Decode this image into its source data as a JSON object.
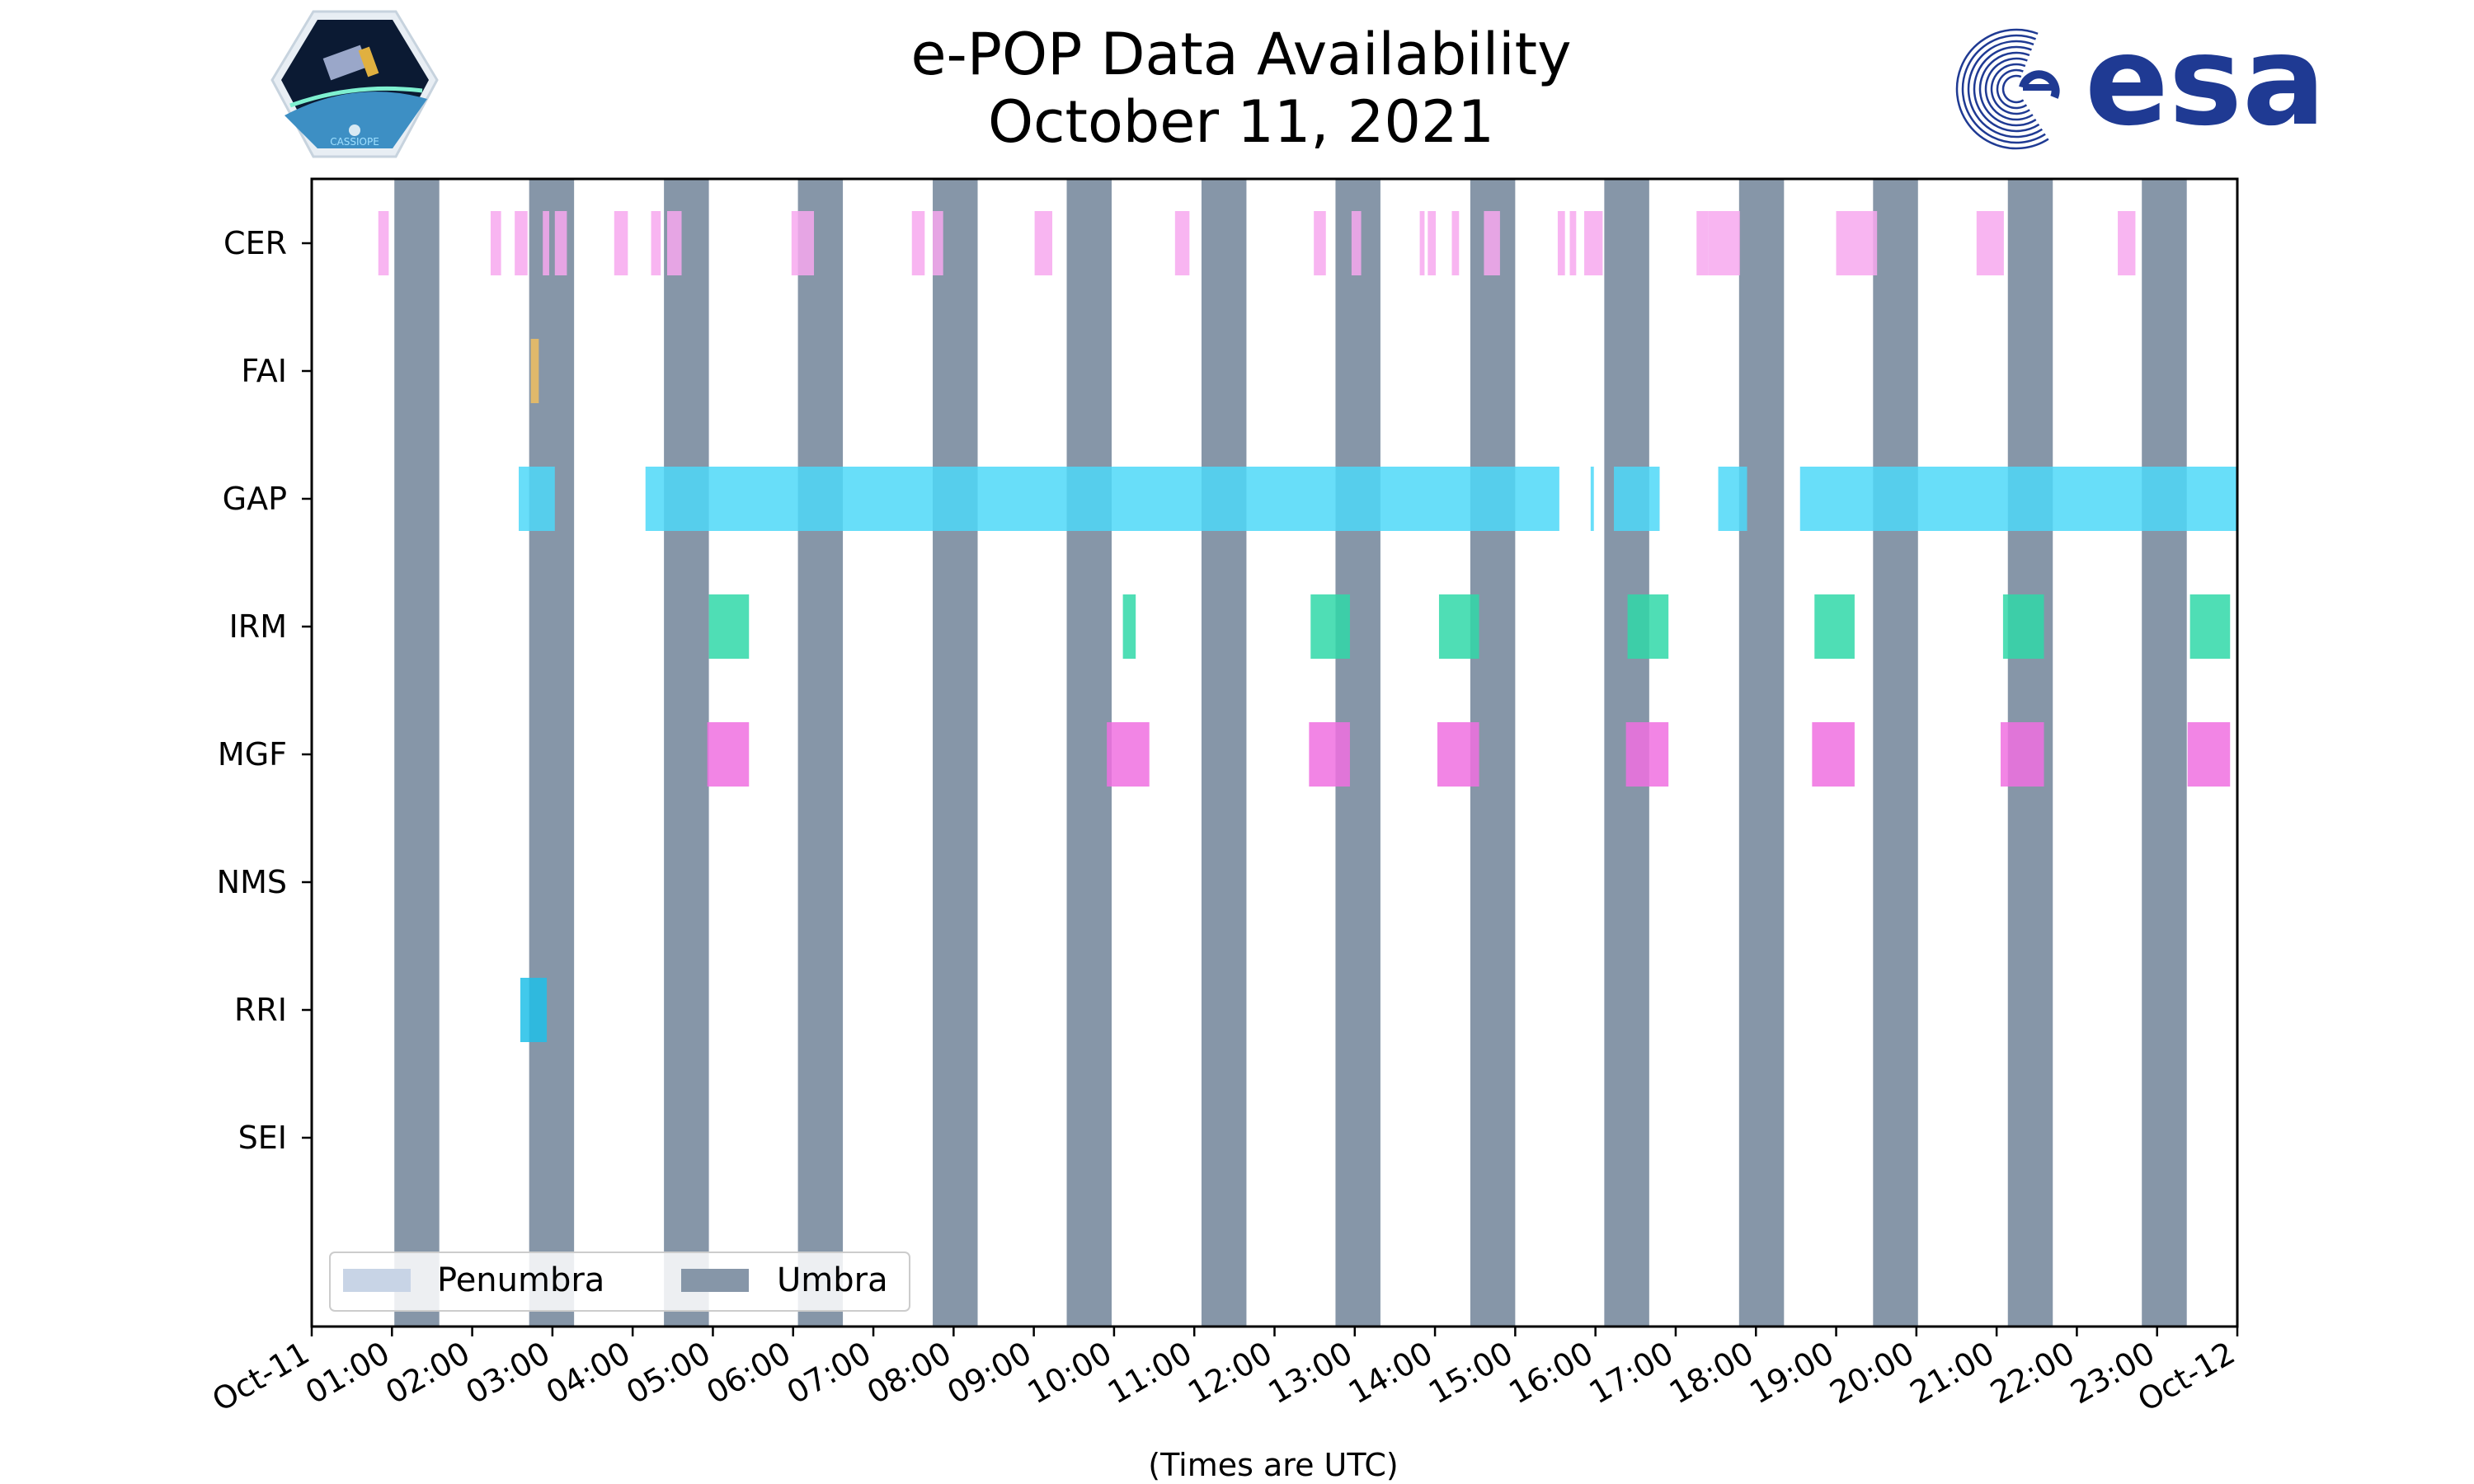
{
  "title_lines": [
    "e-POP Data Availability",
    "October 11, 2021"
  ],
  "xlabel": "(Times are UTC)",
  "logos": {
    "mission_badge_text": "CASSIOPE",
    "agency_text": "esa",
    "agency_color": "#1f3a93"
  },
  "colors": {
    "umbra": "#8696a8",
    "penumbra": "#c8d4e6",
    "CER": "#f7a8ee",
    "FAI": "#f0c060",
    "GAP": "#4dd8f8",
    "IRM": "#30d8a8",
    "MGF": "#f070e0",
    "RRI": "#20c0e8"
  },
  "legend": {
    "placement": "lower-left",
    "items": [
      {
        "label": "Penumbra",
        "color": "#c8d4e6"
      },
      {
        "label": "Umbra",
        "color": "#8696a8"
      }
    ]
  },
  "chart_data": {
    "type": "timeline",
    "x_unit": "hours UTC",
    "xlim": [
      0,
      24
    ],
    "x_ticks": [
      {
        "value": 0,
        "label": "Oct-11"
      },
      {
        "value": 1,
        "label": "01:00"
      },
      {
        "value": 2,
        "label": "02:00"
      },
      {
        "value": 3,
        "label": "03:00"
      },
      {
        "value": 4,
        "label": "04:00"
      },
      {
        "value": 5,
        "label": "05:00"
      },
      {
        "value": 6,
        "label": "06:00"
      },
      {
        "value": 7,
        "label": "07:00"
      },
      {
        "value": 8,
        "label": "08:00"
      },
      {
        "value": 9,
        "label": "09:00"
      },
      {
        "value": 10,
        "label": "10:00"
      },
      {
        "value": 11,
        "label": "11:00"
      },
      {
        "value": 12,
        "label": "12:00"
      },
      {
        "value": 13,
        "label": "13:00"
      },
      {
        "value": 14,
        "label": "14:00"
      },
      {
        "value": 15,
        "label": "15:00"
      },
      {
        "value": 16,
        "label": "16:00"
      },
      {
        "value": 17,
        "label": "17:00"
      },
      {
        "value": 18,
        "label": "18:00"
      },
      {
        "value": 19,
        "label": "19:00"
      },
      {
        "value": 20,
        "label": "20:00"
      },
      {
        "value": 21,
        "label": "21:00"
      },
      {
        "value": 22,
        "label": "22:00"
      },
      {
        "value": 23,
        "label": "23:00"
      },
      {
        "value": 24,
        "label": "Oct-12"
      }
    ],
    "instruments": [
      "CER",
      "FAI",
      "GAP",
      "IRM",
      "MGF",
      "NMS",
      "RRI",
      "SEI"
    ],
    "umbra_intervals": [
      [
        1.03,
        1.59
      ],
      [
        2.71,
        3.27
      ],
      [
        4.39,
        4.95
      ],
      [
        6.06,
        6.62
      ],
      [
        7.74,
        8.3
      ],
      [
        9.41,
        9.97
      ],
      [
        11.09,
        11.65
      ],
      [
        12.76,
        13.32
      ],
      [
        14.44,
        15.0
      ],
      [
        16.11,
        16.67
      ],
      [
        17.79,
        18.35
      ],
      [
        19.46,
        20.02
      ],
      [
        21.14,
        21.7
      ],
      [
        22.81,
        23.37
      ]
    ],
    "penumbra_intervals": [],
    "series": [
      {
        "name": "CER",
        "intervals": [
          [
            0.83,
            0.96
          ],
          [
            2.23,
            2.36
          ],
          [
            2.53,
            2.69
          ],
          [
            2.88,
            2.96
          ],
          [
            3.03,
            3.18
          ],
          [
            3.77,
            3.94
          ],
          [
            4.23,
            4.35
          ],
          [
            4.43,
            4.61
          ],
          [
            5.98,
            6.26
          ],
          [
            7.48,
            7.64
          ],
          [
            7.74,
            7.87
          ],
          [
            9.01,
            9.23
          ],
          [
            10.76,
            10.94
          ],
          [
            12.49,
            12.64
          ],
          [
            12.96,
            13.08
          ],
          [
            13.81,
            13.87
          ],
          [
            13.91,
            14.01
          ],
          [
            14.21,
            14.3
          ],
          [
            14.61,
            14.81
          ],
          [
            15.53,
            15.62
          ],
          [
            15.68,
            15.76
          ],
          [
            15.86,
            16.09
          ],
          [
            17.26,
            17.41
          ],
          [
            17.41,
            17.8
          ],
          [
            19.0,
            19.51
          ],
          [
            20.75,
            21.09
          ],
          [
            22.51,
            22.73
          ]
        ]
      },
      {
        "name": "FAI",
        "intervals": [
          [
            2.73,
            2.83
          ]
        ]
      },
      {
        "name": "GAP",
        "intervals": [
          [
            2.58,
            3.03
          ],
          [
            4.16,
            15.55
          ],
          [
            15.94,
            15.98
          ],
          [
            16.23,
            16.8
          ],
          [
            17.53,
            17.89
          ],
          [
            18.55,
            24.0
          ]
        ]
      },
      {
        "name": "IRM",
        "intervals": [
          [
            4.95,
            5.45
          ],
          [
            10.11,
            10.27
          ],
          [
            12.45,
            12.94
          ],
          [
            14.05,
            14.55
          ],
          [
            16.4,
            16.91
          ],
          [
            18.73,
            19.23
          ],
          [
            21.08,
            21.59
          ],
          [
            23.41,
            23.91
          ]
        ]
      },
      {
        "name": "MGF",
        "intervals": [
          [
            4.93,
            5.45
          ],
          [
            9.91,
            10.44
          ],
          [
            12.43,
            12.94
          ],
          [
            14.03,
            14.55
          ],
          [
            16.38,
            16.91
          ],
          [
            18.7,
            19.23
          ],
          [
            21.05,
            21.59
          ],
          [
            23.38,
            23.91
          ]
        ]
      },
      {
        "name": "NMS",
        "intervals": []
      },
      {
        "name": "RRI",
        "intervals": [
          [
            2.6,
            2.93
          ]
        ]
      },
      {
        "name": "SEI",
        "intervals": []
      }
    ]
  }
}
